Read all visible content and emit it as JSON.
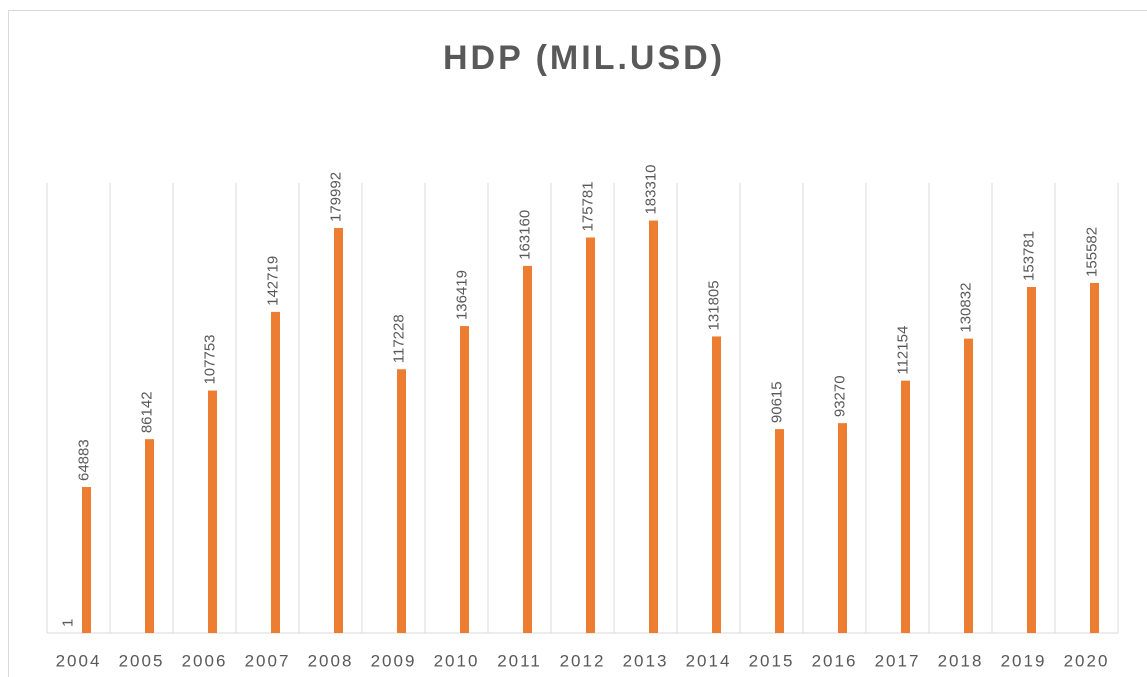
{
  "chart_data": {
    "type": "bar",
    "title": "HDP (MIL.USD)",
    "categories": [
      "2004",
      "2005",
      "2006",
      "2007",
      "2008",
      "2009",
      "2010",
      "2011",
      "2012",
      "2013",
      "2014",
      "2015",
      "2016",
      "2017",
      "2018",
      "2019",
      "2020"
    ],
    "series": [
      {
        "color": "#4472c4",
        "values": [
          1,
          null,
          null,
          null,
          null,
          null,
          null,
          null,
          null,
          null,
          null,
          null,
          null,
          null,
          null,
          null,
          null
        ]
      },
      {
        "color": "#ed7d31",
        "values": [
          64883,
          86142,
          107753,
          142719,
          179992,
          117228,
          136419,
          163160,
          175781,
          183310,
          131805,
          90615,
          93270,
          112154,
          130832,
          153781,
          155582
        ]
      }
    ],
    "ylim": [
      0,
      200000
    ],
    "grid": true,
    "data_labels": true
  }
}
